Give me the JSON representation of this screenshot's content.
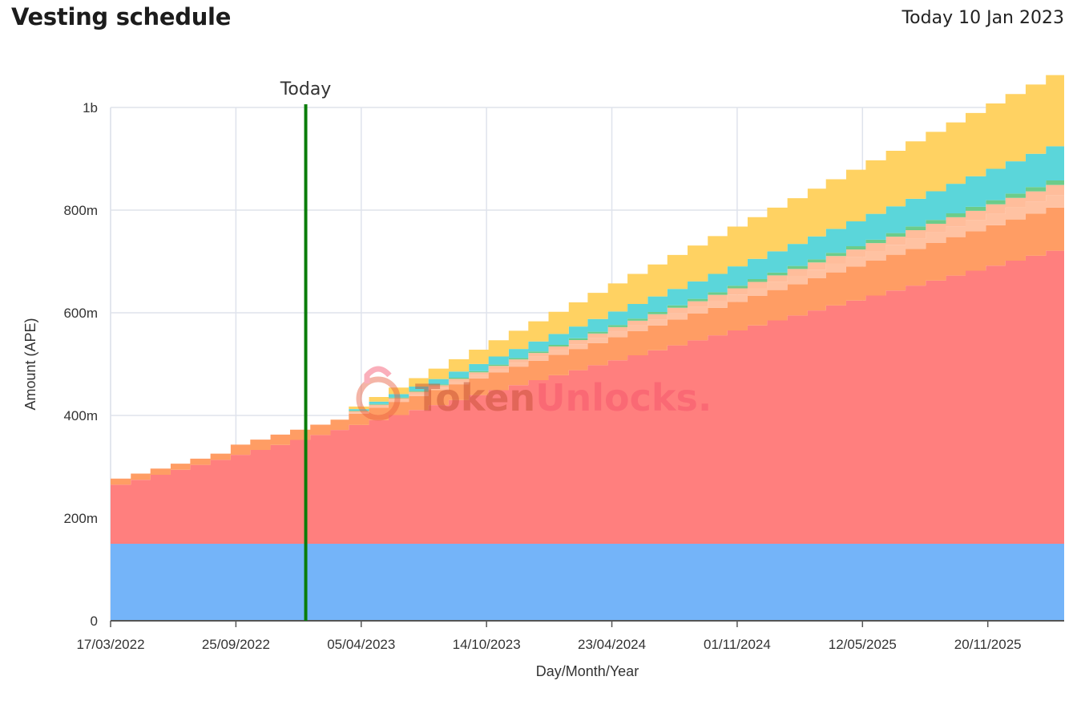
{
  "header": {
    "title": "Vesting schedule",
    "today_date": "Today 10 Jan 2023"
  },
  "watermark": {
    "word1": "Token",
    "word2": "Unlocks.",
    "color1": "#e85d3d",
    "color2": "#f4506a"
  },
  "chart_data": {
    "type": "area",
    "step": true,
    "stacked": true,
    "title": "",
    "xlabel": "Day/Month/Year",
    "ylabel": "Amount (APE)",
    "ylim": [
      0,
      1000000000
    ],
    "y_ticks": [
      {
        "value": 0,
        "label": "0"
      },
      {
        "value": 200000000,
        "label": "200m"
      },
      {
        "value": 400000000,
        "label": "400m"
      },
      {
        "value": 600000000,
        "label": "600m"
      },
      {
        "value": 800000000,
        "label": "800m"
      },
      {
        "value": 1000000000,
        "label": "1b"
      }
    ],
    "x_range": [
      "2022-03-17",
      "2026-03-17"
    ],
    "x_ticks": [
      {
        "date": "2022-03-17",
        "label": "17/03/2022"
      },
      {
        "date": "2022-09-25",
        "label": "25/09/2022"
      },
      {
        "date": "2023-04-05",
        "label": "05/04/2023"
      },
      {
        "date": "2023-10-14",
        "label": "14/10/2023"
      },
      {
        "date": "2024-04-23",
        "label": "23/04/2024"
      },
      {
        "date": "2024-11-01",
        "label": "01/11/2024"
      },
      {
        "date": "2025-05-12",
        "label": "12/05/2025"
      },
      {
        "date": "2025-11-20",
        "label": "20/11/2025"
      }
    ],
    "today": {
      "date": "2023-01-10",
      "label": "Today",
      "color": "#0a7d0a"
    },
    "grid": true,
    "legend": "none",
    "series": [
      {
        "color": "#74b4f9",
        "start": "2022-03-17",
        "start_value": 150000000,
        "step_value": 0,
        "steps": 0
      },
      {
        "color": "#ff7f7e",
        "start": "2022-03-17",
        "start_value": 115000000,
        "step_value": 9700000,
        "steps": 48
      },
      {
        "color": "#ff9d64",
        "start": "2022-03-17",
        "start_value": 12000000,
        "step_value": 0,
        "steps": 0,
        "jumps": [
          {
            "date": "2022-09-17",
            "value": 20000000
          },
          {
            "date": "2023-03-17",
            "value": 22000000
          }
        ],
        "after": "2023-03-17",
        "after_step_value": 1770000,
        "after_steps": 36
      },
      {
        "color": "#ffc2a2",
        "start": "2023-03-17",
        "start_value": 2500000,
        "step_value": 620000,
        "steps": 36
      },
      {
        "color": "#ffbd9b",
        "start": "2023-03-17",
        "start_value": 2500000,
        "step_value": 500000,
        "steps": 36
      },
      {
        "color": "#6ccc8a",
        "start": "2023-03-17",
        "start_value": 1000000,
        "step_value": 220000,
        "steps": 36
      },
      {
        "color": "#5bd6da",
        "start": "2023-03-17",
        "start_value": 3000000,
        "step_value": 1820000,
        "steps": 36
      },
      {
        "color": "#ffd262",
        "start": "2023-03-17",
        "start_value": 5000000,
        "step_value": 3820000,
        "steps": 36
      }
    ]
  }
}
